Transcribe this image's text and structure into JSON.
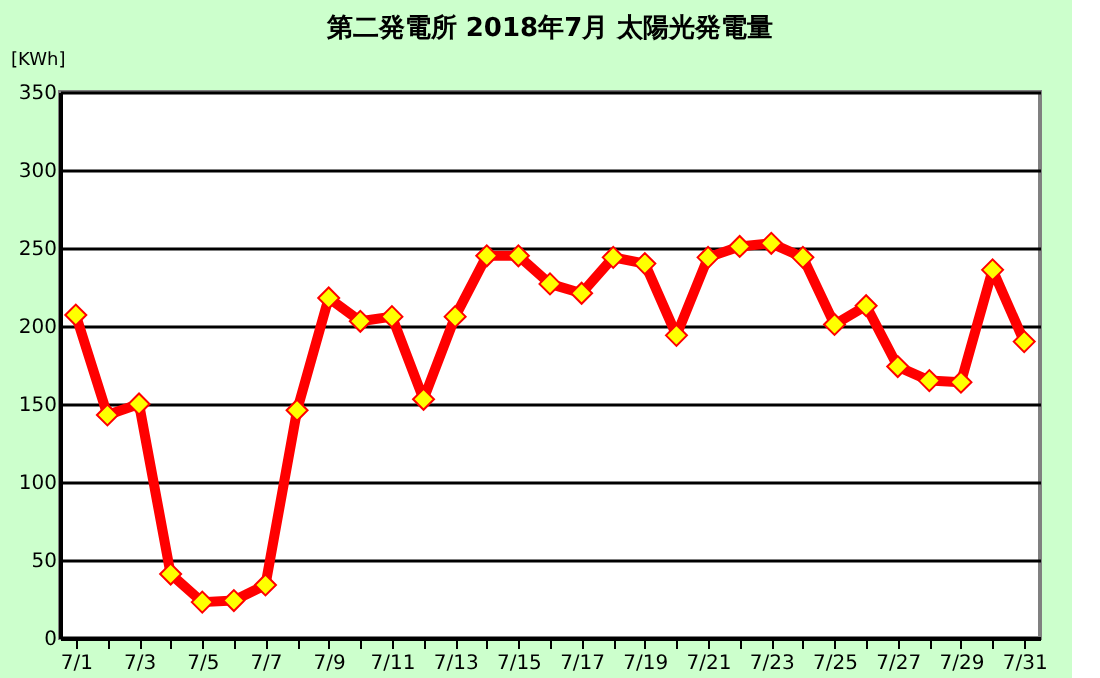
{
  "chart_data": {
    "type": "line",
    "title": "第二発電所  2018年7月 太陽光発電量",
    "ylabel": "[KWh]",
    "categories": [
      "7/1",
      null,
      "7/3",
      null,
      "7/5",
      null,
      "7/7",
      null,
      "7/9",
      null,
      "7/11",
      null,
      "7/13",
      null,
      "7/15",
      null,
      "7/17",
      null,
      "7/19",
      null,
      "7/21",
      null,
      "7/23",
      null,
      "7/25",
      null,
      "7/27",
      null,
      "7/29",
      null,
      "7/31"
    ],
    "series": [
      {
        "color": "#ff0000",
        "values": [
          207,
          143,
          150,
          41,
          23,
          24,
          34,
          146,
          218,
          203,
          206,
          153,
          206,
          245,
          245,
          227,
          221,
          244,
          240,
          194,
          244,
          251,
          253,
          244,
          201,
          213,
          174,
          165,
          164,
          236,
          190
        ]
      }
    ],
    "ylim": [
      0,
      350
    ],
    "yticks": [
      0,
      50,
      100,
      150,
      200,
      250,
      300,
      350
    ],
    "grid": "y",
    "marker": "diamond",
    "line_style": "solid"
  }
}
